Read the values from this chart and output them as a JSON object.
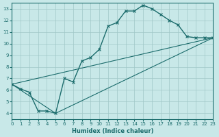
{
  "xlabel": "Humidex (Indice chaleur)",
  "bg_color": "#c8e8e8",
  "grid_color": "#a0c8c8",
  "line_color": "#1a6b6b",
  "xlim": [
    0,
    23
  ],
  "ylim": [
    3.5,
    13.5
  ],
  "xticks": [
    0,
    1,
    2,
    3,
    4,
    5,
    6,
    7,
    8,
    9,
    10,
    11,
    12,
    13,
    14,
    15,
    16,
    17,
    18,
    19,
    20,
    21,
    22,
    23
  ],
  "yticks": [
    4,
    5,
    6,
    7,
    8,
    9,
    10,
    11,
    12,
    13
  ],
  "line1_x": [
    0,
    1,
    2,
    3,
    4,
    5,
    6,
    7,
    8,
    9,
    10,
    11,
    12,
    13,
    14,
    15,
    16,
    17,
    18,
    19,
    20,
    21,
    22,
    23
  ],
  "line1_y": [
    6.5,
    6.1,
    5.8,
    4.2,
    4.2,
    4.0,
    7.0,
    6.7,
    8.5,
    8.8,
    9.5,
    11.5,
    11.8,
    12.8,
    12.8,
    13.3,
    13.0,
    12.5,
    12.0,
    11.6,
    10.6,
    10.5,
    10.5,
    10.5
  ],
  "line2_x": [
    0,
    23
  ],
  "line2_y": [
    6.5,
    10.5
  ],
  "line3_x": [
    0,
    5,
    23
  ],
  "line3_y": [
    6.5,
    4.0,
    10.5
  ]
}
